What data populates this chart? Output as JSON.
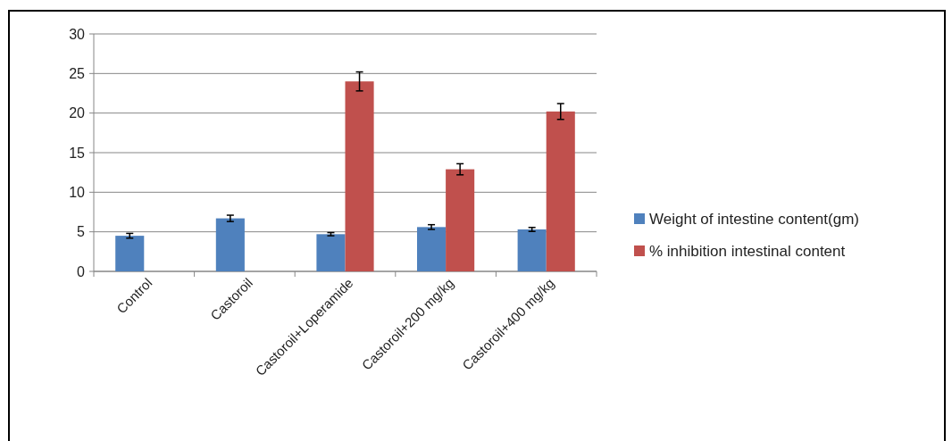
{
  "chart_data": {
    "type": "bar",
    "categories": [
      "Control",
      "Castoroil",
      "Castoroil+Loperamide",
      "Castoroil+200 mg/kg",
      "Castoroil+400 mg/kg"
    ],
    "series": [
      {
        "name": "Weight of intestine content(gm)",
        "color": "#4f81bd",
        "values": [
          4.5,
          6.7,
          4.7,
          5.6,
          5.3
        ],
        "errors": [
          0.3,
          0.4,
          0.2,
          0.3,
          0.25
        ]
      },
      {
        "name": "% inhibition intestinal content",
        "color": "#c0504d",
        "values": [
          null,
          null,
          24.0,
          12.9,
          20.2
        ],
        "errors": [
          null,
          null,
          1.2,
          0.7,
          1.0
        ]
      }
    ],
    "ylim": [
      0,
      30
    ],
    "yticks": [
      0,
      5,
      10,
      15,
      20,
      25,
      30
    ],
    "grid": "y",
    "legend": "right"
  }
}
